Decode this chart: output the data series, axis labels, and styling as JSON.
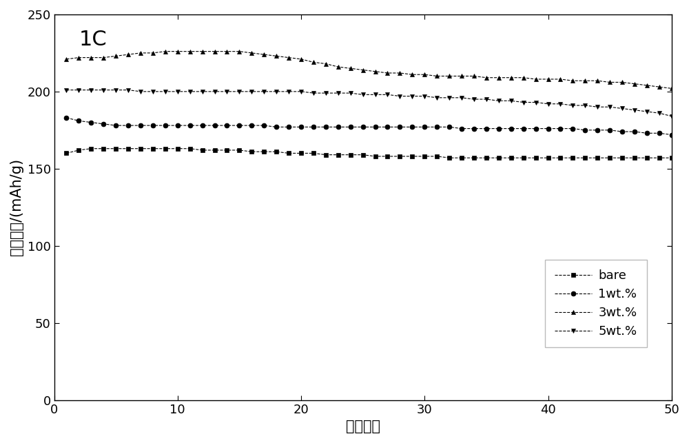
{
  "title": "1C",
  "xlabel": "循环次数",
  "ylabel": "放电容量/(mAh/g)",
  "xlim": [
    0,
    50
  ],
  "ylim": [
    0,
    250
  ],
  "xticks": [
    0,
    10,
    20,
    30,
    40,
    50
  ],
  "yticks": [
    0,
    50,
    100,
    150,
    200,
    250
  ],
  "background_color": "#ffffff",
  "legend_labels": [
    "bare",
    "1wt.%",
    "3wt.%",
    "5wt.%"
  ],
  "series": [
    {
      "label": "bare",
      "marker": "s",
      "color": "#000000",
      "x": [
        1,
        2,
        3,
        4,
        5,
        6,
        7,
        8,
        9,
        10,
        11,
        12,
        13,
        14,
        15,
        16,
        17,
        18,
        19,
        20,
        21,
        22,
        23,
        24,
        25,
        26,
        27,
        28,
        29,
        30,
        31,
        32,
        33,
        34,
        35,
        36,
        37,
        38,
        39,
        40,
        41,
        42,
        43,
        44,
        45,
        46,
        47,
        48,
        49,
        50
      ],
      "y": [
        160,
        162,
        163,
        163,
        163,
        163,
        163,
        163,
        163,
        163,
        163,
        162,
        162,
        162,
        162,
        161,
        161,
        161,
        160,
        160,
        160,
        159,
        159,
        159,
        159,
        158,
        158,
        158,
        158,
        158,
        158,
        157,
        157,
        157,
        157,
        157,
        157,
        157,
        157,
        157,
        157,
        157,
        157,
        157,
        157,
        157,
        157,
        157,
        157,
        157
      ]
    },
    {
      "label": "1wt.%",
      "marker": "o",
      "color": "#000000",
      "x": [
        1,
        2,
        3,
        4,
        5,
        6,
        7,
        8,
        9,
        10,
        11,
        12,
        13,
        14,
        15,
        16,
        17,
        18,
        19,
        20,
        21,
        22,
        23,
        24,
        25,
        26,
        27,
        28,
        29,
        30,
        31,
        32,
        33,
        34,
        35,
        36,
        37,
        38,
        39,
        40,
        41,
        42,
        43,
        44,
        45,
        46,
        47,
        48,
        49,
        50
      ],
      "y": [
        183,
        181,
        180,
        179,
        178,
        178,
        178,
        178,
        178,
        178,
        178,
        178,
        178,
        178,
        178,
        178,
        178,
        177,
        177,
        177,
        177,
        177,
        177,
        177,
        177,
        177,
        177,
        177,
        177,
        177,
        177,
        177,
        176,
        176,
        176,
        176,
        176,
        176,
        176,
        176,
        176,
        176,
        175,
        175,
        175,
        174,
        174,
        173,
        173,
        172
      ]
    },
    {
      "label": "3wt.%",
      "marker": "^",
      "color": "#000000",
      "x": [
        1,
        2,
        3,
        4,
        5,
        6,
        7,
        8,
        9,
        10,
        11,
        12,
        13,
        14,
        15,
        16,
        17,
        18,
        19,
        20,
        21,
        22,
        23,
        24,
        25,
        26,
        27,
        28,
        29,
        30,
        31,
        32,
        33,
        34,
        35,
        36,
        37,
        38,
        39,
        40,
        41,
        42,
        43,
        44,
        45,
        46,
        47,
        48,
        49,
        50
      ],
      "y": [
        221,
        222,
        222,
        222,
        223,
        224,
        225,
        225,
        226,
        226,
        226,
        226,
        226,
        226,
        226,
        225,
        224,
        223,
        222,
        221,
        219,
        218,
        216,
        215,
        214,
        213,
        212,
        212,
        211,
        211,
        210,
        210,
        210,
        210,
        209,
        209,
        209,
        209,
        208,
        208,
        208,
        207,
        207,
        207,
        206,
        206,
        205,
        204,
        203,
        202
      ]
    },
    {
      "label": "5wt.%",
      "marker": "v",
      "color": "#000000",
      "x": [
        1,
        2,
        3,
        4,
        5,
        6,
        7,
        8,
        9,
        10,
        11,
        12,
        13,
        14,
        15,
        16,
        17,
        18,
        19,
        20,
        21,
        22,
        23,
        24,
        25,
        26,
        27,
        28,
        29,
        30,
        31,
        32,
        33,
        34,
        35,
        36,
        37,
        38,
        39,
        40,
        41,
        42,
        43,
        44,
        45,
        46,
        47,
        48,
        49,
        50
      ],
      "y": [
        201,
        201,
        201,
        201,
        201,
        201,
        200,
        200,
        200,
        200,
        200,
        200,
        200,
        200,
        200,
        200,
        200,
        200,
        200,
        200,
        199,
        199,
        199,
        199,
        198,
        198,
        198,
        197,
        197,
        197,
        196,
        196,
        196,
        195,
        195,
        194,
        194,
        193,
        193,
        192,
        192,
        191,
        191,
        190,
        190,
        189,
        188,
        187,
        186,
        184
      ]
    }
  ]
}
